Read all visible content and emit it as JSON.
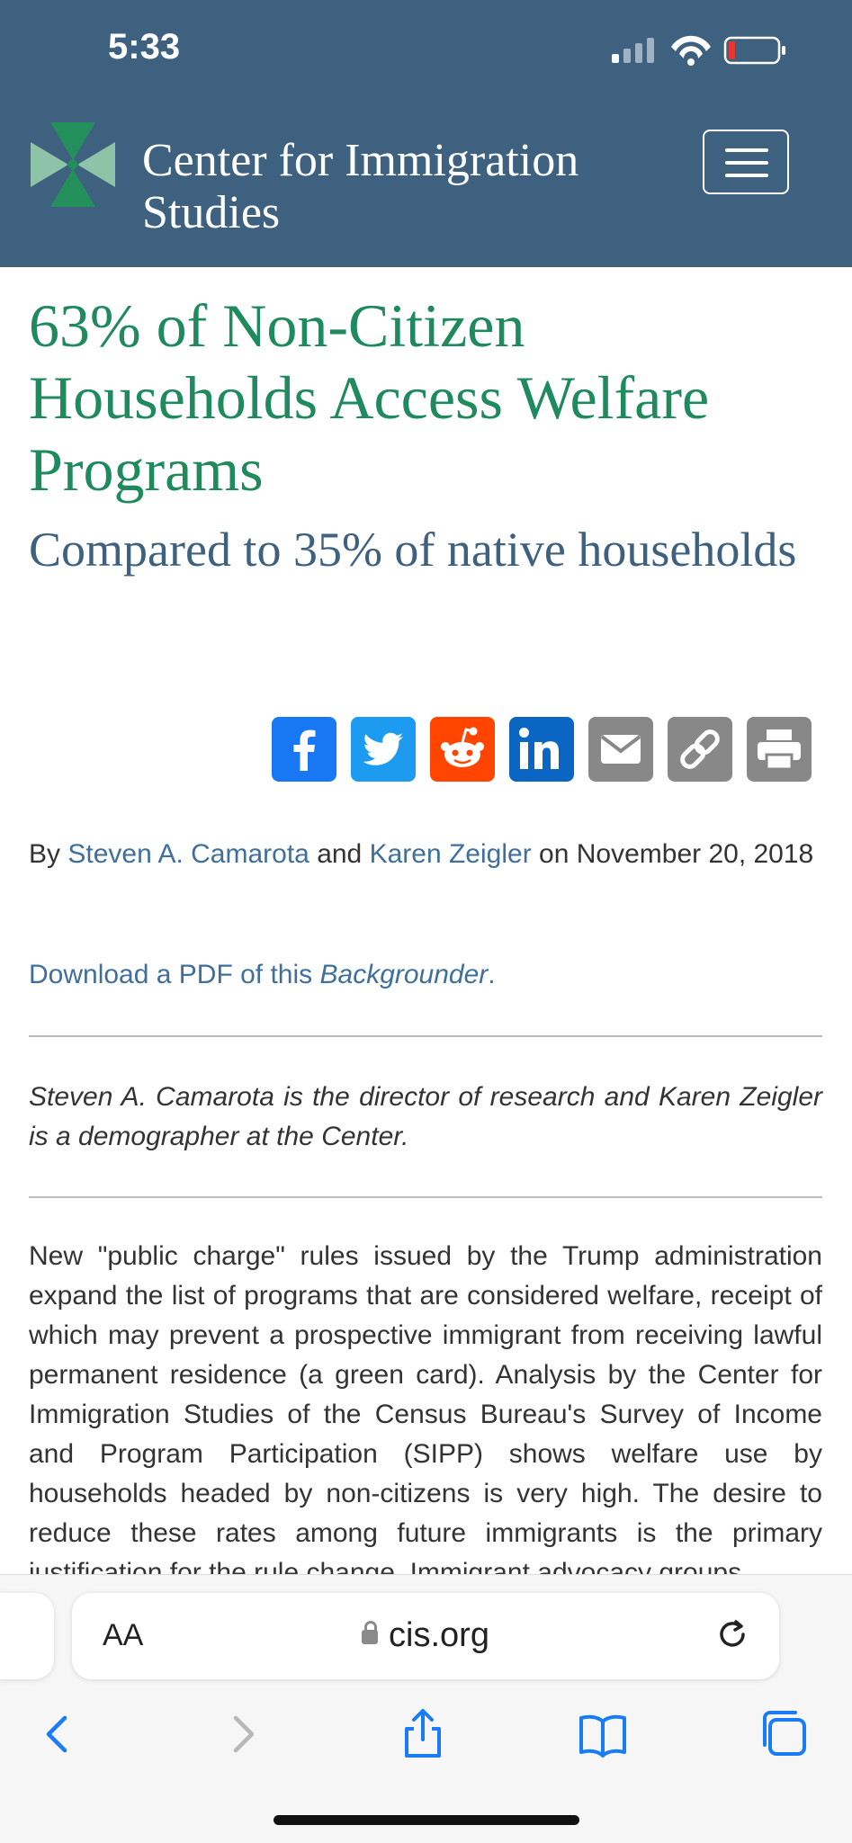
{
  "status": {
    "time": "5:33"
  },
  "header": {
    "site_name_line1": "Center for Immigration",
    "site_name_line2": "Studies",
    "menu_icon": "hamburger-menu-icon"
  },
  "article": {
    "title": "63% of Non-Citizen Households Access Welfare Programs",
    "subtitle": "Compared to 35% of native households",
    "share_icons": [
      "facebook-icon",
      "twitter-icon",
      "reddit-icon",
      "linkedin-icon",
      "email-icon",
      "copy-link-icon",
      "print-icon"
    ],
    "byline_prefix": "By",
    "author1": "Steven A. Camarota",
    "byline_and": "and",
    "author2": "Karen Zeigler",
    "byline_date": "on November 20, 2018",
    "pdf_prefix": "Download a PDF of this",
    "pdf_italic": "Backgrounder",
    "pdf_suffix": ".",
    "about": "Steven A. Camarota is the director of research and Karen Zeigler is a demographer at the Center.",
    "body": "New \"public charge\" rules issued by the Trump administration expand the list of programs that are considered welfare, receipt of which may prevent a prospective immigrant from receiving lawful permanent residence (a green card). Analysis by the Center for Immigration Studies of the Census Bureau's Survey of Income and Program Participation (SIPP) shows welfare use by households headed by non-citizens is very high. The desire to reduce these rates among future immigrants is the primary justification for the rule change. Immigrant advocacy groups"
  },
  "browser": {
    "aa_label": "AA",
    "url": "cis.org",
    "colors": {
      "brand": "#3f6180",
      "title_green": "#1f8a5e",
      "link": "#3f6f9a",
      "ios_blue": "#1a7cf5"
    }
  }
}
